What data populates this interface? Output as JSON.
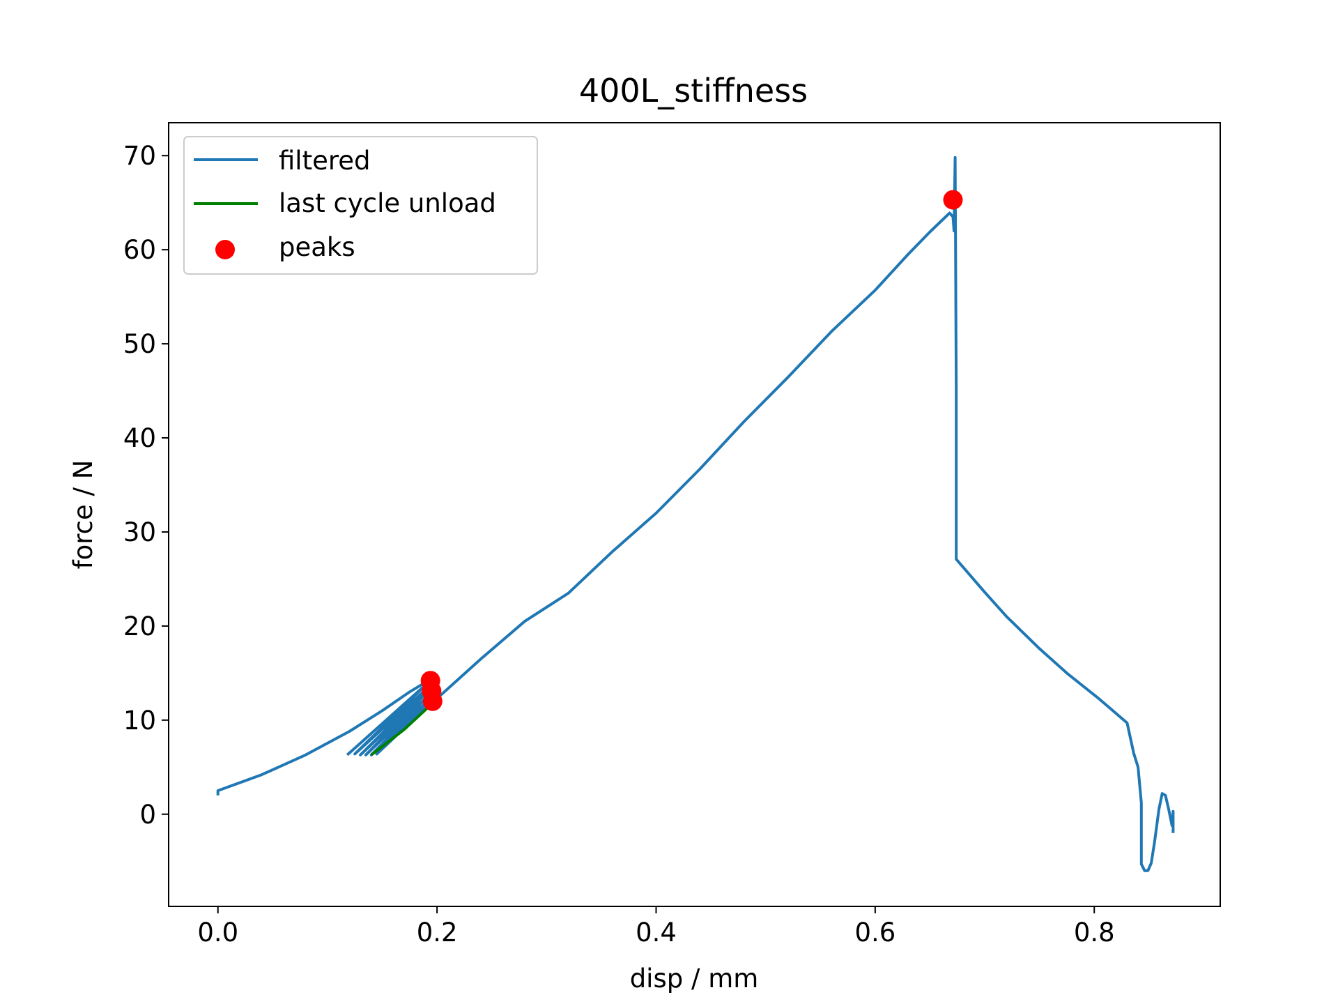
{
  "chart_data": {
    "type": "line",
    "title": "400L_stiffness",
    "xlabel": "disp / mm",
    "ylabel": "force / N",
    "xlim": [
      -0.045,
      0.915
    ],
    "ylim": [
      -9.8,
      73.5
    ],
    "xticks": [
      0.0,
      0.2,
      0.4,
      0.6,
      0.8
    ],
    "xtick_labels": [
      "0.0",
      "0.2",
      "0.4",
      "0.6",
      "0.8"
    ],
    "yticks": [
      0,
      10,
      20,
      30,
      40,
      50,
      60,
      70
    ],
    "ytick_labels": [
      "0",
      "10",
      "20",
      "30",
      "40",
      "50",
      "60",
      "70"
    ],
    "grid": false,
    "legend_position": "upper-left",
    "series": [
      {
        "name": "filtered",
        "kind": "line",
        "color": "#1f77b4",
        "segments": [
          [
            [
              0.0,
              2.0
            ],
            [
              0.0,
              2.5
            ],
            [
              0.04,
              4.2
            ],
            [
              0.08,
              6.3
            ],
            [
              0.12,
              8.8
            ],
            [
              0.15,
              11.0
            ],
            [
              0.175,
              13.0
            ],
            [
              0.192,
              14.2
            ],
            [
              0.194,
              13.2
            ],
            [
              0.196,
              12.0
            ],
            [
              0.2,
              12.3
            ],
            [
              0.24,
              16.5
            ],
            [
              0.28,
              20.5
            ],
            [
              0.3,
              22.0
            ],
            [
              0.32,
              23.5
            ],
            [
              0.36,
              27.9
            ],
            [
              0.4,
              32.0
            ],
            [
              0.44,
              36.7
            ],
            [
              0.48,
              41.7
            ],
            [
              0.52,
              46.4
            ],
            [
              0.56,
              51.3
            ],
            [
              0.6,
              55.7
            ],
            [
              0.63,
              59.5
            ],
            [
              0.65,
              61.9
            ],
            [
              0.668,
              63.9
            ],
            [
              0.671,
              63.5
            ],
            [
              0.672,
              62.0
            ],
            [
              0.673,
              69.8
            ],
            [
              0.674,
              45.0
            ],
            [
              0.674,
              27.1
            ],
            [
              0.7,
              23.6
            ],
            [
              0.72,
              21.0
            ],
            [
              0.75,
              17.6
            ],
            [
              0.775,
              15.0
            ],
            [
              0.805,
              12.2
            ],
            [
              0.83,
              9.7
            ],
            [
              0.836,
              6.5
            ],
            [
              0.84,
              5.0
            ],
            [
              0.843,
              1.2
            ],
            [
              0.843,
              -5.3
            ],
            [
              0.846,
              -6.0
            ],
            [
              0.849,
              -6.0
            ],
            [
              0.852,
              -5.2
            ],
            [
              0.855,
              -3.0
            ],
            [
              0.859,
              0.5
            ],
            [
              0.862,
              2.2
            ],
            [
              0.865,
              2.0
            ],
            [
              0.868,
              0.5
            ],
            [
              0.871,
              -1.2
            ],
            [
              0.872,
              0.3
            ],
            [
              0.872,
              -2.0
            ]
          ],
          [
            [
              0.118,
              6.3
            ],
            [
              0.192,
              14.0
            ],
            [
              0.125,
              6.4
            ],
            [
              0.193,
              13.6
            ],
            [
              0.13,
              6.3
            ],
            [
              0.193,
              13.2
            ],
            [
              0.135,
              6.3
            ],
            [
              0.194,
              12.8
            ],
            [
              0.14,
              6.3
            ],
            [
              0.195,
              12.4
            ],
            [
              0.145,
              6.4
            ],
            [
              0.196,
              12.0
            ]
          ]
        ]
      },
      {
        "name": "last cycle unload",
        "kind": "line",
        "color": "#008000",
        "points": [
          [
            0.14,
            6.3
          ],
          [
            0.17,
            9.0
          ],
          [
            0.196,
            11.8
          ]
        ]
      },
      {
        "name": "peaks",
        "kind": "scatter",
        "color": "#ff0000",
        "points": [
          [
            0.194,
            14.2
          ],
          [
            0.195,
            13.1
          ],
          [
            0.196,
            12.0
          ],
          [
            0.671,
            65.3
          ]
        ]
      }
    ]
  }
}
